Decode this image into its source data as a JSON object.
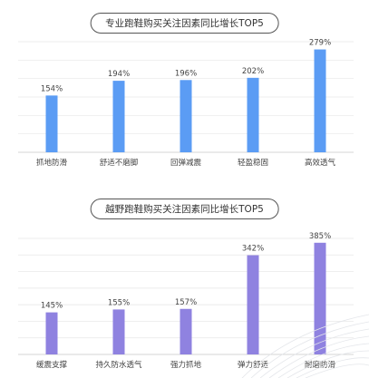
{
  "chart_data": [
    {
      "type": "bar",
      "title": "专业跑鞋购买关注因素同比增长TOP5",
      "categories": [
        "抓地防滑",
        "舒适不磨脚",
        "回弹减震",
        "轻盈稳固",
        "高效透气"
      ],
      "values": [
        154,
        194,
        196,
        202,
        279
      ],
      "value_labels": [
        "154%",
        "194%",
        "196%",
        "202%",
        "279%"
      ],
      "unit": "%",
      "ylim": [
        0,
        300
      ],
      "grid": true,
      "color": "#5b9cf4"
    },
    {
      "type": "bar",
      "title": "越野跑鞋购买关注因素同比增长TOP5",
      "categories": [
        "缓震支撑",
        "持久防水透气",
        "强力抓地",
        "弹力舒适",
        "耐磨防滑"
      ],
      "values": [
        145,
        155,
        157,
        342,
        385
      ],
      "value_labels": [
        "145%",
        "155%",
        "157%",
        "342%",
        "385%"
      ],
      "unit": "%",
      "ylim": [
        0,
        400
      ],
      "grid": true,
      "color": "#8f82e0"
    }
  ]
}
